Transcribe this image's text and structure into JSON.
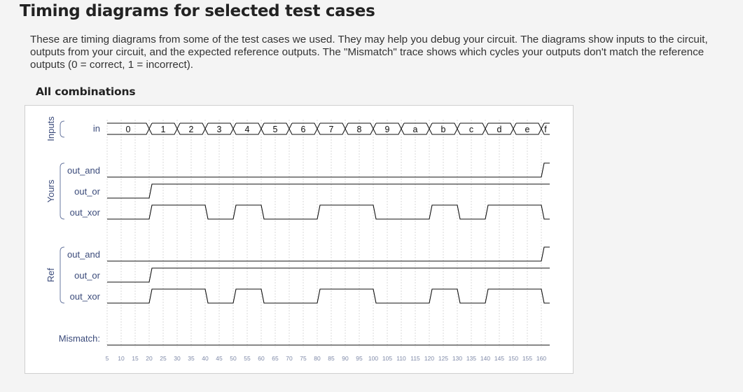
{
  "page": {
    "title": "Timing diagrams for selected test cases",
    "description": "These are timing diagrams from some of the test cases we used. They may help you debug your circuit. The diagrams show inputs to the circuit, outputs from your circuit, and the expected reference outputs. The \"Mismatch\" trace shows which cycles your outputs don't match the reference outputs (0 = correct, 1 = incorrect).",
    "section_title": "All combinations"
  },
  "chart_data": {
    "type": "timing-diagram",
    "time_ticks": [
      5,
      10,
      15,
      20,
      25,
      30,
      35,
      40,
      45,
      50,
      55,
      60,
      65,
      70,
      75,
      80,
      85,
      90,
      95,
      100,
      105,
      110,
      115,
      120,
      125,
      130,
      135,
      140,
      145,
      150,
      155,
      160
    ],
    "groups": [
      {
        "label": "Inputs",
        "signals": [
          "in"
        ]
      },
      {
        "label": "Yours",
        "signals": [
          "out_and",
          "out_or",
          "out_xor"
        ]
      },
      {
        "label": "Ref",
        "signals": [
          "out_and",
          "out_or",
          "out_xor"
        ]
      }
    ],
    "bus": {
      "name": "in",
      "segments": [
        {
          "start": 5,
          "end": 20,
          "value": "0"
        },
        {
          "start": 20,
          "end": 30,
          "value": "1"
        },
        {
          "start": 30,
          "end": 40,
          "value": "2"
        },
        {
          "start": 40,
          "end": 50,
          "value": "3"
        },
        {
          "start": 50,
          "end": 60,
          "value": "4"
        },
        {
          "start": 60,
          "end": 70,
          "value": "5"
        },
        {
          "start": 70,
          "end": 80,
          "value": "6"
        },
        {
          "start": 80,
          "end": 90,
          "value": "7"
        },
        {
          "start": 90,
          "end": 100,
          "value": "8"
        },
        {
          "start": 100,
          "end": 110,
          "value": "9"
        },
        {
          "start": 110,
          "end": 120,
          "value": "a"
        },
        {
          "start": 120,
          "end": 130,
          "value": "b"
        },
        {
          "start": 130,
          "end": 140,
          "value": "c"
        },
        {
          "start": 140,
          "end": 150,
          "value": "d"
        },
        {
          "start": 150,
          "end": 160,
          "value": "e"
        },
        {
          "start": 160,
          "end": 163,
          "value": "f"
        }
      ]
    },
    "time_end": 163,
    "yours": [
      {
        "name": "out_and",
        "edges": [
          [
            5,
            0
          ],
          [
            160,
            1
          ]
        ]
      },
      {
        "name": "out_or",
        "edges": [
          [
            5,
            0
          ],
          [
            20,
            1
          ]
        ]
      },
      {
        "name": "out_xor",
        "edges": [
          [
            5,
            0
          ],
          [
            20,
            1
          ],
          [
            40,
            0
          ],
          [
            50,
            1
          ],
          [
            60,
            0
          ],
          [
            80,
            1
          ],
          [
            100,
            0
          ],
          [
            120,
            1
          ],
          [
            130,
            0
          ],
          [
            140,
            1
          ],
          [
            160,
            0
          ]
        ]
      }
    ],
    "reference": [
      {
        "name": "out_and",
        "edges": [
          [
            5,
            0
          ],
          [
            160,
            1
          ]
        ]
      },
      {
        "name": "out_or",
        "edges": [
          [
            5,
            0
          ],
          [
            20,
            1
          ]
        ]
      },
      {
        "name": "out_xor",
        "edges": [
          [
            5,
            0
          ],
          [
            20,
            1
          ],
          [
            40,
            0
          ],
          [
            50,
            1
          ],
          [
            60,
            0
          ],
          [
            80,
            1
          ],
          [
            100,
            0
          ],
          [
            120,
            1
          ],
          [
            130,
            0
          ],
          [
            140,
            1
          ],
          [
            160,
            0
          ]
        ]
      }
    ],
    "mismatch": {
      "name": "Mismatch:",
      "edges": [
        [
          5,
          0
        ]
      ]
    }
  }
}
